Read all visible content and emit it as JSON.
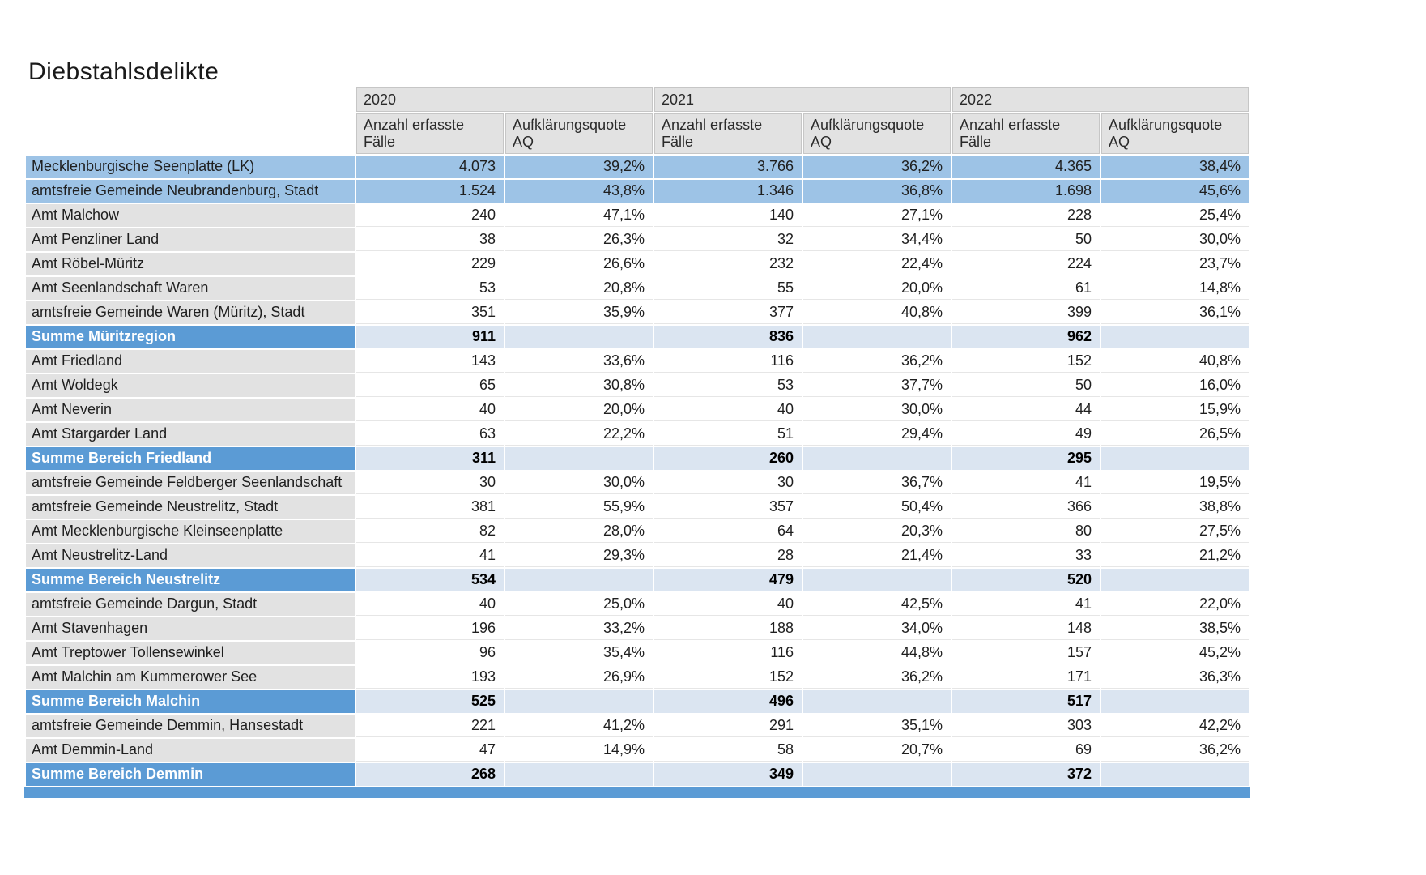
{
  "title": "Diebstahlsdelikte",
  "colors": {
    "highlight_row_bg": "#9dc3e6",
    "sum_label_bg": "#5b9bd5",
    "sum_value_bg": "#dbe5f1",
    "label_cell_bg": "#e2e2e2",
    "header_bg": "#e2e2e2"
  },
  "chart_data": {
    "type": "table",
    "title": "Diebstahlsdelikte",
    "year_groups": [
      "2020",
      "2021",
      "2022"
    ],
    "sub_columns": [
      "Anzahl erfasste Fälle",
      "Aufklärungsquote AQ"
    ],
    "columns": [
      "Anzahl erfasste Fälle 2020",
      "Aufklärungsquote AQ 2020",
      "Anzahl erfasste Fälle 2021",
      "Aufklärungsquote AQ 2021",
      "Anzahl erfasste Fälle 2022",
      "Aufklärungsquote AQ 2022"
    ],
    "rows": [
      {
        "label": "Mecklenburgische Seenplatte (LK)",
        "style": "highlight",
        "values": [
          "4.073",
          "39,2%",
          "3.766",
          "36,2%",
          "4.365",
          "38,4%"
        ]
      },
      {
        "label": "amtsfreie Gemeinde Neubrandenburg, Stadt",
        "style": "highlight",
        "values": [
          "1.524",
          "43,8%",
          "1.346",
          "36,8%",
          "1.698",
          "45,6%"
        ]
      },
      {
        "label": "Amt Malchow",
        "style": "normal",
        "values": [
          "240",
          "47,1%",
          "140",
          "27,1%",
          "228",
          "25,4%"
        ]
      },
      {
        "label": "Amt Penzliner Land",
        "style": "normal",
        "values": [
          "38",
          "26,3%",
          "32",
          "34,4%",
          "50",
          "30,0%"
        ]
      },
      {
        "label": "Amt Röbel-Müritz",
        "style": "normal",
        "values": [
          "229",
          "26,6%",
          "232",
          "22,4%",
          "224",
          "23,7%"
        ]
      },
      {
        "label": "Amt Seenlandschaft Waren",
        "style": "normal",
        "values": [
          "53",
          "20,8%",
          "55",
          "20,0%",
          "61",
          "14,8%"
        ]
      },
      {
        "label": "amtsfreie Gemeinde Waren (Müritz), Stadt",
        "style": "normal",
        "values": [
          "351",
          "35,9%",
          "377",
          "40,8%",
          "399",
          "36,1%"
        ]
      },
      {
        "label": "Summe Müritzregion",
        "style": "sum",
        "values": [
          "911",
          "",
          "836",
          "",
          "962",
          ""
        ]
      },
      {
        "label": "Amt Friedland",
        "style": "normal",
        "values": [
          "143",
          "33,6%",
          "116",
          "36,2%",
          "152",
          "40,8%"
        ]
      },
      {
        "label": "Amt Woldegk",
        "style": "normal",
        "values": [
          "65",
          "30,8%",
          "53",
          "37,7%",
          "50",
          "16,0%"
        ]
      },
      {
        "label": "Amt Neverin",
        "style": "normal",
        "values": [
          "40",
          "20,0%",
          "40",
          "30,0%",
          "44",
          "15,9%"
        ]
      },
      {
        "label": "Amt Stargarder Land",
        "style": "normal",
        "values": [
          "63",
          "22,2%",
          "51",
          "29,4%",
          "49",
          "26,5%"
        ]
      },
      {
        "label": "Summe Bereich Friedland",
        "style": "sum",
        "values": [
          "311",
          "",
          "260",
          "",
          "295",
          ""
        ]
      },
      {
        "label": "amtsfreie Gemeinde Feldberger Seenlandschaft",
        "style": "normal",
        "values": [
          "30",
          "30,0%",
          "30",
          "36,7%",
          "41",
          "19,5%"
        ]
      },
      {
        "label": "amtsfreie Gemeinde Neustrelitz, Stadt",
        "style": "normal",
        "values": [
          "381",
          "55,9%",
          "357",
          "50,4%",
          "366",
          "38,8%"
        ]
      },
      {
        "label": "Amt Mecklenburgische Kleinseenplatte",
        "style": "normal",
        "values": [
          "82",
          "28,0%",
          "64",
          "20,3%",
          "80",
          "27,5%"
        ]
      },
      {
        "label": "Amt Neustrelitz-Land",
        "style": "normal",
        "values": [
          "41",
          "29,3%",
          "28",
          "21,4%",
          "33",
          "21,2%"
        ]
      },
      {
        "label": "Summe Bereich Neustrelitz",
        "style": "sum",
        "values": [
          "534",
          "",
          "479",
          "",
          "520",
          ""
        ]
      },
      {
        "label": "amtsfreie Gemeinde Dargun, Stadt",
        "style": "normal",
        "values": [
          "40",
          "25,0%",
          "40",
          "42,5%",
          "41",
          "22,0%"
        ]
      },
      {
        "label": "Amt Stavenhagen",
        "style": "normal",
        "values": [
          "196",
          "33,2%",
          "188",
          "34,0%",
          "148",
          "38,5%"
        ]
      },
      {
        "label": "Amt Treptower Tollensewinkel",
        "style": "normal",
        "values": [
          "96",
          "35,4%",
          "116",
          "44,8%",
          "157",
          "45,2%"
        ]
      },
      {
        "label": "Amt Malchin am Kummerower See",
        "style": "normal",
        "values": [
          "193",
          "26,9%",
          "152",
          "36,2%",
          "171",
          "36,3%"
        ]
      },
      {
        "label": "Summe Bereich Malchin",
        "style": "sum",
        "values": [
          "525",
          "",
          "496",
          "",
          "517",
          ""
        ]
      },
      {
        "label": "amtsfreie Gemeinde Demmin, Hansestadt",
        "style": "normal",
        "values": [
          "221",
          "41,2%",
          "291",
          "35,1%",
          "303",
          "42,2%"
        ]
      },
      {
        "label": "Amt Demmin-Land",
        "style": "normal",
        "values": [
          "47",
          "14,9%",
          "58",
          "20,7%",
          "69",
          "36,2%"
        ]
      },
      {
        "label": "Summe Bereich Demmin",
        "style": "sum",
        "values": [
          "268",
          "",
          "349",
          "",
          "372",
          ""
        ]
      }
    ]
  }
}
